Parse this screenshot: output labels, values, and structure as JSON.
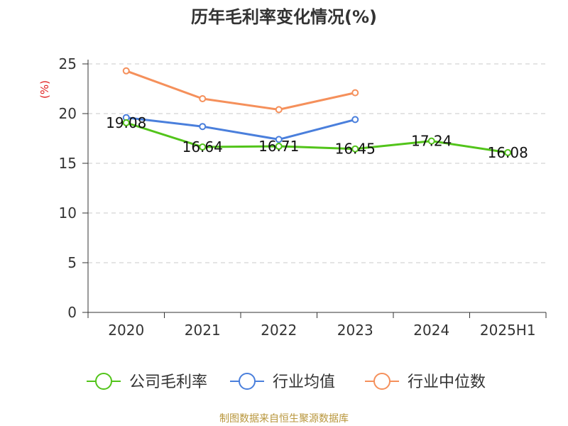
{
  "chart_data": {
    "type": "line",
    "title": "历年毛利率变化情况(%)",
    "ylabel": "(%)",
    "xlabel": "",
    "categories": [
      "2020",
      "2021",
      "2022",
      "2023",
      "2024",
      "2025H1"
    ],
    "ylim": [
      0,
      25
    ],
    "yticks": [
      0,
      5,
      10,
      15,
      20,
      25
    ],
    "grid": true,
    "legend_position": "bottom",
    "series": [
      {
        "name": "公司毛利率",
        "color": "#52c41a",
        "values": [
          19.08,
          16.64,
          16.71,
          16.45,
          17.24,
          16.08
        ],
        "show_labels": true
      },
      {
        "name": "行业均值",
        "color": "#4a7fdc",
        "values": [
          19.6,
          18.7,
          17.4,
          19.4,
          null,
          null
        ],
        "show_labels": false
      },
      {
        "name": "行业中位数",
        "color": "#f5905b",
        "values": [
          24.3,
          21.5,
          20.4,
          22.1,
          null,
          null
        ],
        "show_labels": false
      }
    ]
  },
  "source": "制图数据来自恒生聚源数据库"
}
